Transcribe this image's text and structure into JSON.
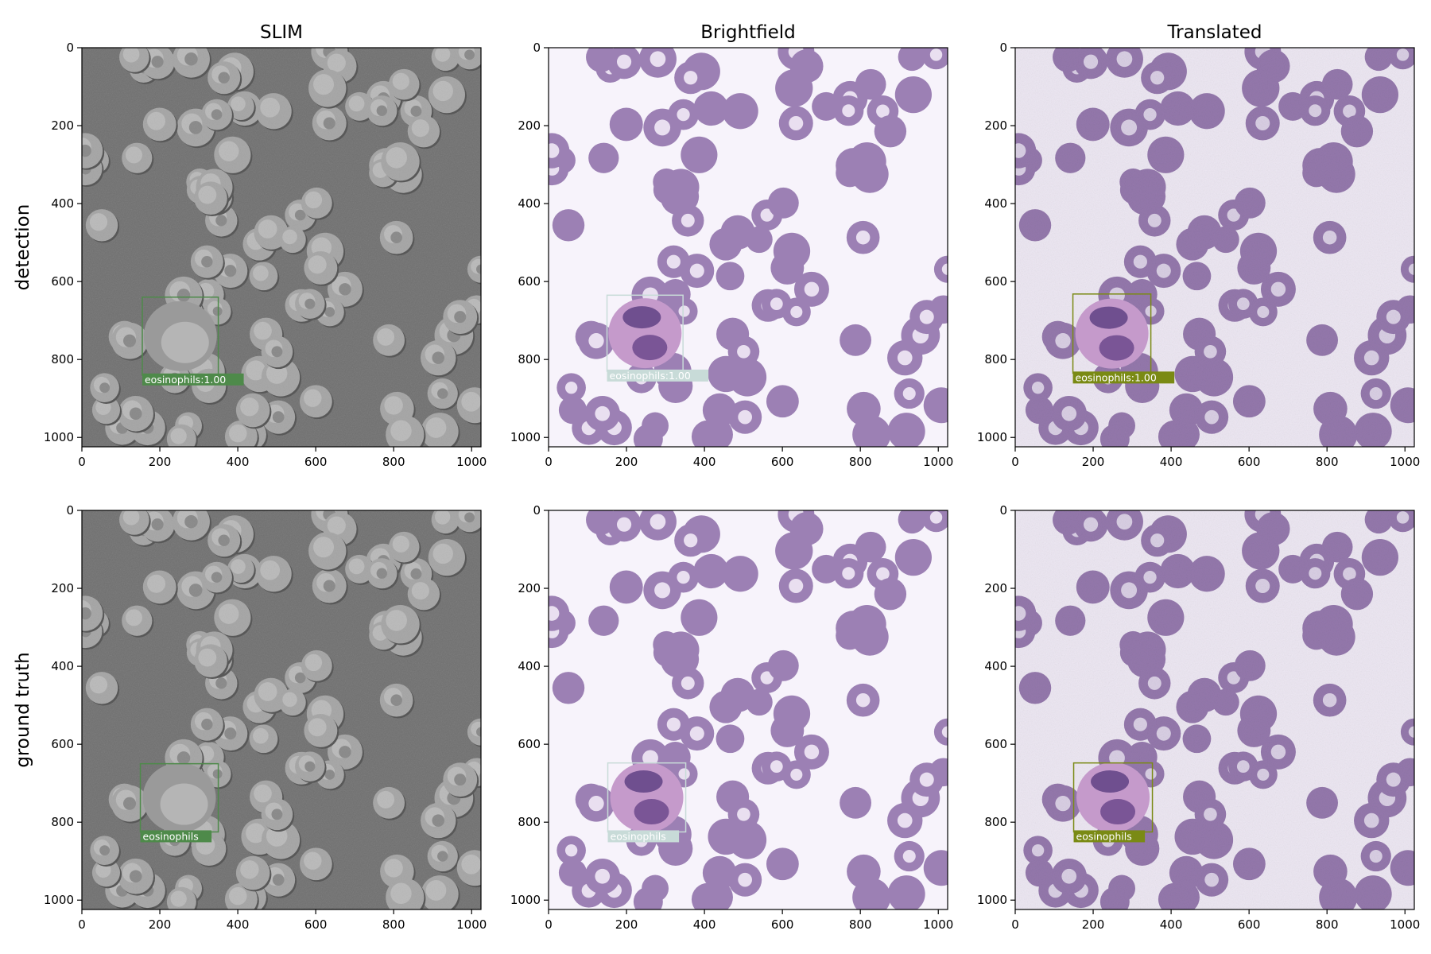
{
  "figure": {
    "columns": [
      "SLIM",
      "Brightfield",
      "Translated"
    ],
    "rows": [
      "detection",
      "ground truth"
    ],
    "tick_values": [
      0,
      200,
      400,
      600,
      800,
      1000
    ],
    "image_extent": [
      0,
      1024
    ],
    "box_colors": {
      "SLIM": "#4e8a4a",
      "Brightfield": "#c8dbd8",
      "Translated": "#7a8a14"
    },
    "background_colors": {
      "SLIM": "#6f6f6f",
      "Brightfield": "#f7f3fb",
      "Translated": "#ece6f2"
    },
    "cell_colors": {
      "SLIM": "#a9a9a9",
      "Brightfield": "#9c80b4",
      "Translated": "#9478ac"
    },
    "panels": [
      {
        "row": 0,
        "col": 0,
        "label": "eosinophils:1.00",
        "box": {
          "x0": 155,
          "y0": 640,
          "x1": 350,
          "y1": 840
        }
      },
      {
        "row": 0,
        "col": 1,
        "label": "eosinophils:1.00",
        "box": {
          "x0": 150,
          "y0": 635,
          "x1": 345,
          "y1": 830
        }
      },
      {
        "row": 0,
        "col": 2,
        "label": "eosinophils:1.00",
        "box": {
          "x0": 148,
          "y0": 632,
          "x1": 348,
          "y1": 835
        }
      },
      {
        "row": 1,
        "col": 0,
        "label": "eosinophils",
        "box": {
          "x0": 150,
          "y0": 650,
          "x1": 350,
          "y1": 825
        }
      },
      {
        "row": 1,
        "col": 1,
        "label": "eosinophils",
        "box": {
          "x0": 152,
          "y0": 648,
          "x1": 352,
          "y1": 825
        }
      },
      {
        "row": 1,
        "col": 2,
        "label": "eosinophils",
        "box": {
          "x0": 150,
          "y0": 648,
          "x1": 352,
          "y1": 825
        }
      }
    ]
  }
}
